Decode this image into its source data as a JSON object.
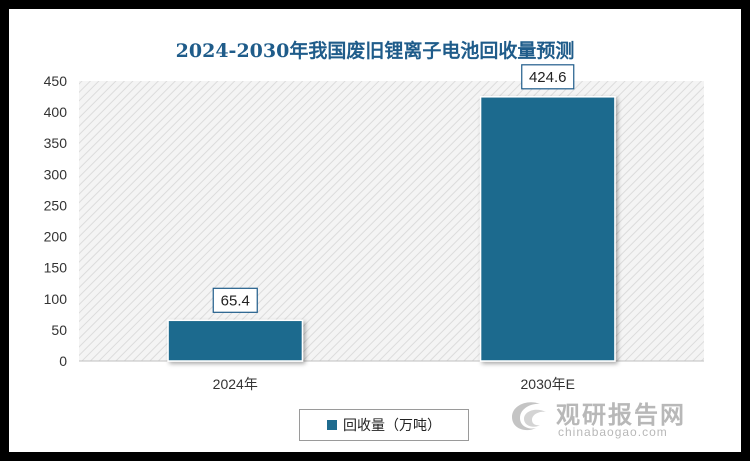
{
  "chart_data": {
    "type": "bar",
    "title": "2024-2030年我国废旧锂离子电池回收量预测",
    "categories": [
      "2024年",
      "2030年E"
    ],
    "series": [
      {
        "name": "回收量（万吨）",
        "values": [
          65.4,
          424.6
        ]
      }
    ],
    "data_labels": [
      "65.4",
      "424.6"
    ],
    "yticks": [
      "0",
      "50",
      "100",
      "150",
      "200",
      "250",
      "300",
      "350",
      "400",
      "450"
    ],
    "ylim": [
      0,
      450
    ],
    "grid": false,
    "legend": "bottom-center",
    "bar_color": "#1f6b8e",
    "plot_background": "hatched-gray"
  },
  "watermark": {
    "name_cn": "观研报告网",
    "url": "chinabaogao.com",
    "icon": "watermark-logo-icon"
  }
}
